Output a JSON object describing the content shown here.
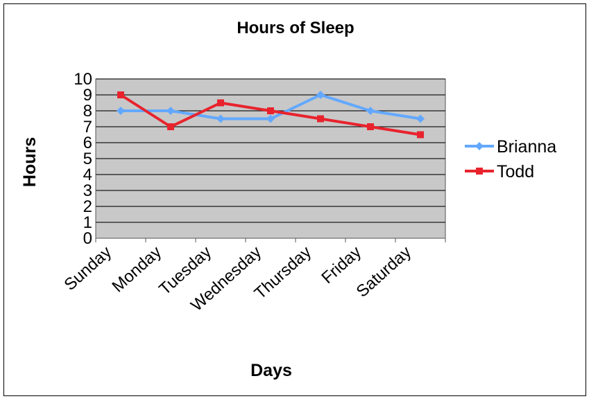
{
  "chart_data": {
    "type": "line",
    "title": "Hours of Sleep",
    "xlabel": "Days",
    "ylabel": "Hours",
    "categories": [
      "Sunday",
      "Monday",
      "Tuesday",
      "Wednesday",
      "Thursday",
      "Friday",
      "Saturday"
    ],
    "ylim": [
      0,
      10
    ],
    "yticks": [
      "0",
      "1",
      "2",
      "3",
      "4",
      "5",
      "6",
      "7",
      "8",
      "9",
      "10"
    ],
    "grid": true,
    "legend_position": "right",
    "plot_background": "#c8c8c8",
    "series": [
      {
        "name": "Brianna",
        "color": "#63a8ff",
        "marker": "diamond",
        "values": [
          8,
          8,
          7.5,
          7.5,
          9,
          8,
          7.5
        ]
      },
      {
        "name": "Todd",
        "color": "#e8232d",
        "marker": "square",
        "values": [
          9,
          7,
          8.5,
          8,
          7.5,
          7,
          6.5
        ]
      }
    ]
  }
}
